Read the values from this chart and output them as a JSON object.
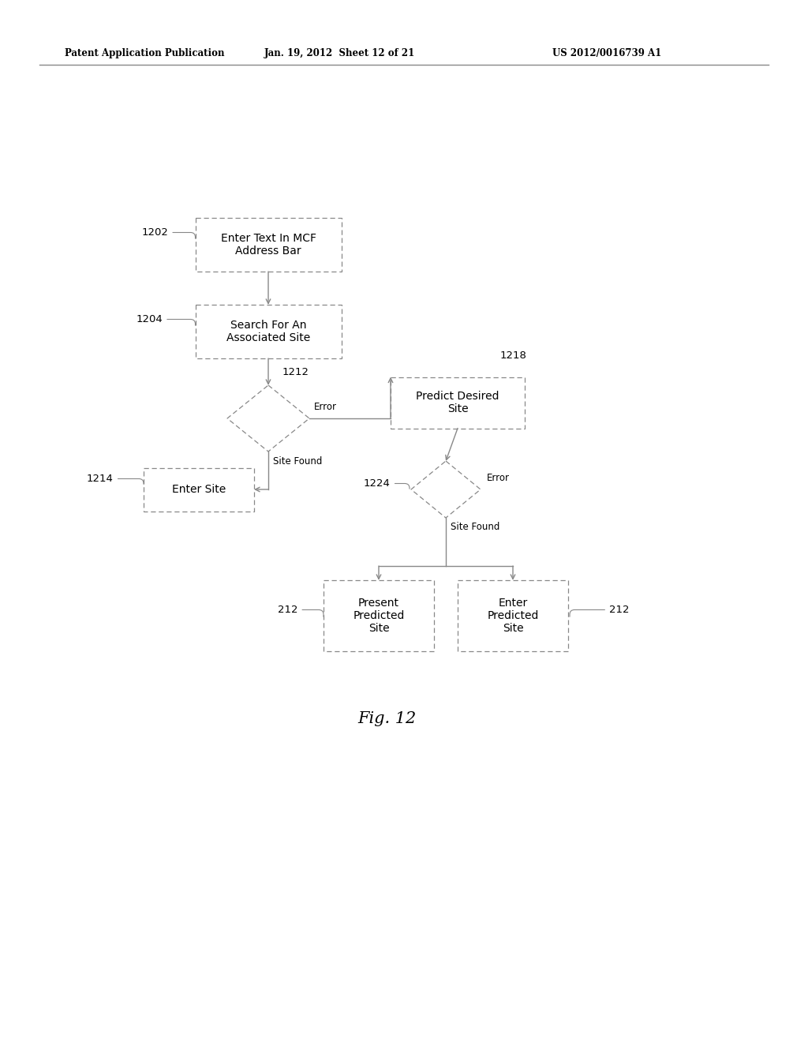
{
  "bg_color": "#ffffff",
  "header_left": "Patent Application Publication",
  "header_mid": "Jan. 19, 2012  Sheet 12 of 21",
  "header_right": "US 2012/0016739 A1",
  "fig_label": "Fig. 12",
  "text_fontsize": 10,
  "label_fontsize": 9.5,
  "header_fontsize": 8.5,
  "fig_label_fontsize": 15,
  "edge_color": "#888888",
  "line_color": "#888888"
}
